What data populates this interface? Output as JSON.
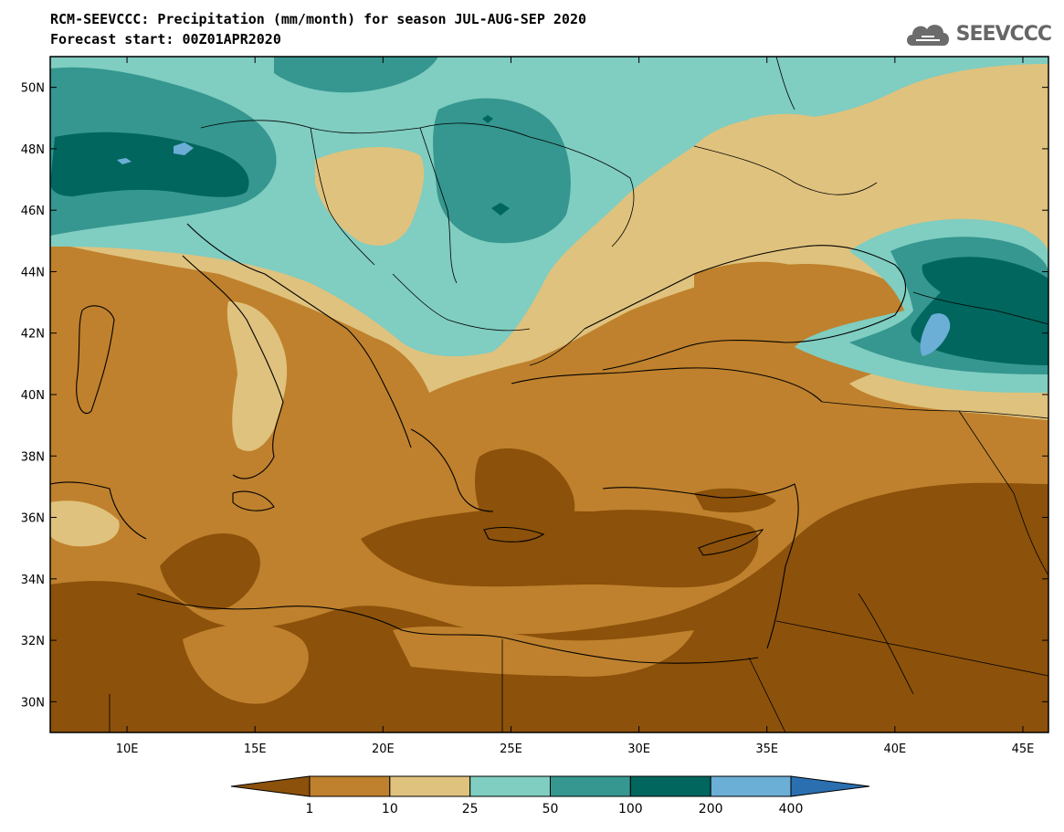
{
  "header": {
    "title_line1": "RCM-SEEVCCC: Precipitation (mm/month) for season JUL-AUG-SEP 2020",
    "title_line2": "Forecast start: 00Z01APR2020",
    "logo_text": "SEEVCCC",
    "logo_icon": "cloud-logo-icon",
    "logo_color": "#6b6b6b"
  },
  "map": {
    "lon_range": [
      7,
      46
    ],
    "lat_range": [
      29,
      51
    ],
    "lon_ticks": [
      "10E",
      "15E",
      "20E",
      "25E",
      "30E",
      "35E",
      "40E",
      "45E"
    ],
    "lat_ticks": [
      "50N",
      "48N",
      "46N",
      "44N",
      "42N",
      "40N",
      "38N",
      "36N",
      "34N",
      "32N",
      "30N"
    ]
  },
  "colorbar": {
    "labels": [
      "1",
      "10",
      "25",
      "50",
      "100",
      "200",
      "400"
    ],
    "colors": [
      "#8c510a",
      "#bf812d",
      "#dfc27d",
      "#80cdc1",
      "#35978f",
      "#01665e",
      "#6baed6",
      "#2b6fb0"
    ]
  }
}
